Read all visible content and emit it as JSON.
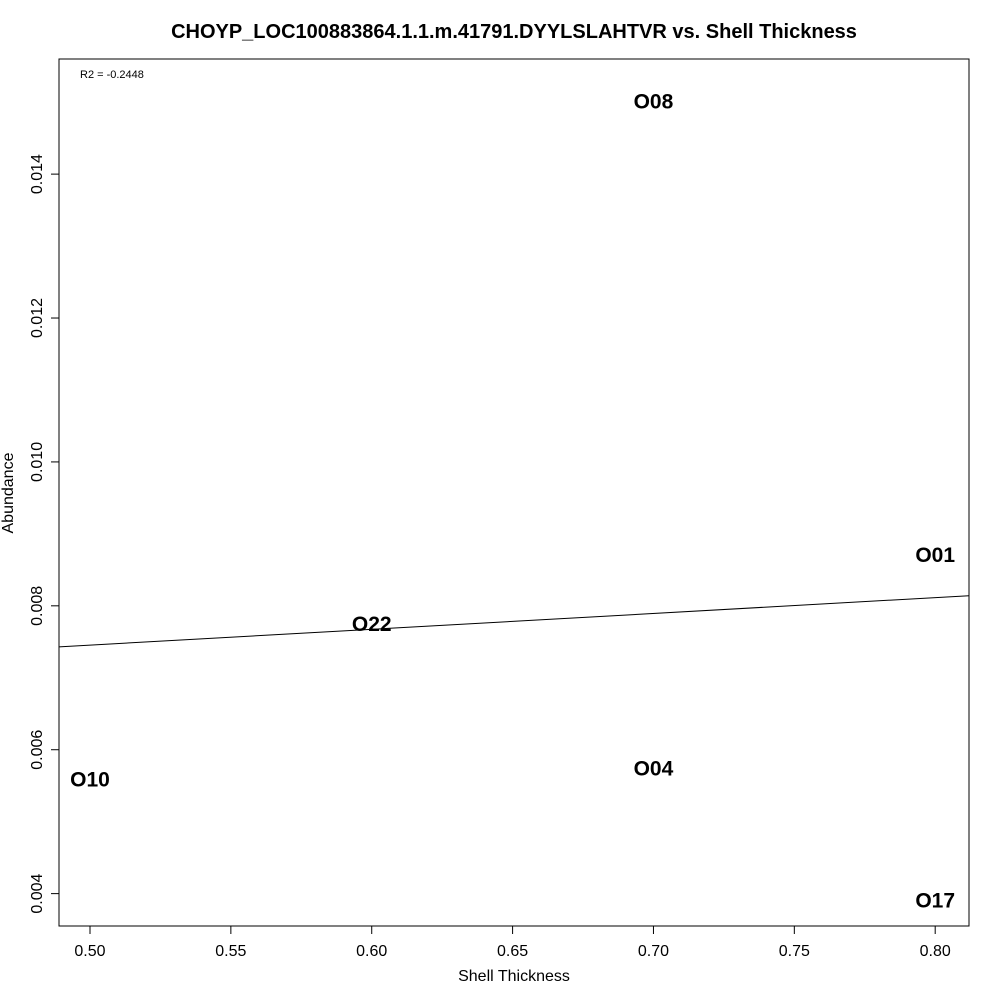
{
  "chart_data": {
    "type": "scatter",
    "title": "CHOYP_LOC100883864.1.1.m.41791.DYYLSLAHTVR vs. Shell Thickness",
    "xlabel": "Shell Thickness",
    "ylabel": "Abundance",
    "annotation": "R2 = -0.2448",
    "xlim": [
      0.489,
      0.812
    ],
    "ylim": [
      0.00355,
      0.0156
    ],
    "xticks": [
      0.5,
      0.55,
      0.6,
      0.65,
      0.7,
      0.75,
      0.8
    ],
    "xtick_labels": [
      "0.50",
      "0.55",
      "0.60",
      "0.65",
      "0.70",
      "0.75",
      "0.80"
    ],
    "yticks": [
      0.004,
      0.006,
      0.008,
      0.01,
      0.012,
      0.014
    ],
    "ytick_labels": [
      "0.004",
      "0.006",
      "0.008",
      "0.010",
      "0.012",
      "0.014"
    ],
    "points": [
      {
        "label": "O08",
        "x": 0.7,
        "y": 0.015
      },
      {
        "label": "O01",
        "x": 0.8,
        "y": 0.0087
      },
      {
        "label": "O22",
        "x": 0.6,
        "y": 0.00774
      },
      {
        "label": "O10",
        "x": 0.5,
        "y": 0.00558
      },
      {
        "label": "O04",
        "x": 0.7,
        "y": 0.00573
      },
      {
        "label": "O17",
        "x": 0.8,
        "y": 0.0039
      }
    ],
    "regression_line": {
      "x": [
        0.489,
        0.812
      ],
      "y": [
        0.00743,
        0.00814
      ]
    },
    "grid": false,
    "legend": "none"
  }
}
